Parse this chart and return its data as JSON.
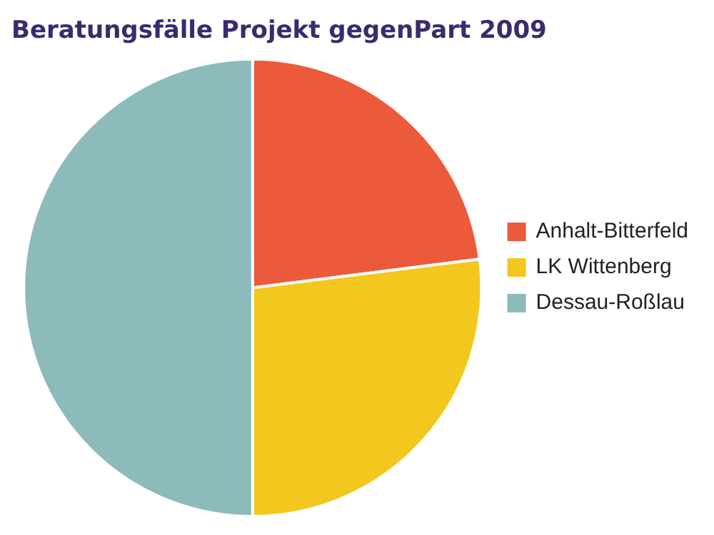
{
  "chart_data": {
    "type": "pie",
    "title": "Beratungsfälle Projekt gegenPart 2009",
    "categories": [
      "Anhalt-Bitterfeld",
      "LK Wittenberg",
      "Dessau-Roßlau"
    ],
    "values": [
      23,
      27,
      50
    ],
    "colors": [
      "#ec5a3c",
      "#f2c81e",
      "#8dbaba"
    ],
    "legend": "right"
  }
}
